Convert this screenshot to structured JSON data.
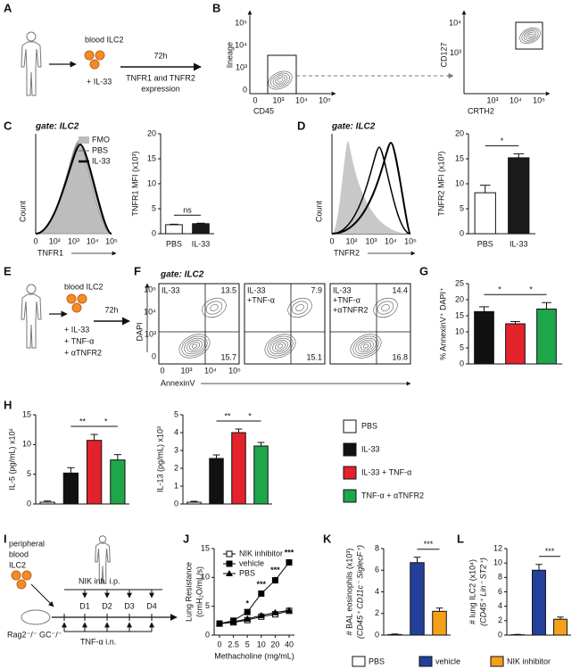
{
  "panel_labels": [
    "A",
    "B",
    "C",
    "D",
    "E",
    "F",
    "G",
    "H",
    "I",
    "J",
    "K",
    "L"
  ],
  "diagram_a": {
    "cells": "blood ILC2",
    "stimulus": "+ IL-33",
    "time": "72h",
    "readout": [
      "TNFR1 and TNFR2",
      "expression"
    ]
  },
  "flow_b": [
    {
      "ylabel": "lineage",
      "xlabel": "CD45",
      "yticks": [
        "10⁵",
        "10⁴",
        "10³",
        "0"
      ],
      "xticks": [
        "0",
        "10³",
        "10⁴",
        "10⁵"
      ]
    },
    {
      "ylabel": "CD127",
      "xlabel": "CRTH2",
      "yticks": [
        "10⁴",
        "10³"
      ],
      "xticks": [
        "10³",
        "10⁴",
        "10⁵"
      ]
    }
  ],
  "histograms": [
    {
      "gate": "gate: ILC2",
      "ylabel": "Count",
      "xlabel": "TNFR1",
      "xticks": [
        "0",
        "10²",
        "10³",
        "10⁴",
        "10⁵"
      ],
      "legend": [
        "FMO",
        "PBS",
        "IL-33"
      ]
    },
    {
      "gate": "gate: ILC2",
      "ylabel": "Count",
      "xlabel": "TNFR2",
      "xticks": [
        "0",
        "10²",
        "10³",
        "10⁴",
        "10⁵"
      ]
    }
  ],
  "diagram_e": {
    "cells": "blood ILC2",
    "stimuli": [
      "+ IL-33",
      "+ TNF-α",
      "+ αTNFR2"
    ],
    "time": "72h"
  },
  "flow_f": {
    "gate": "gate: ILC2",
    "ylabel": "DAPI",
    "xlabel": "AnnexinV",
    "yticks": [
      "10⁵",
      "10⁴",
      "10³",
      "0"
    ],
    "xticks": [
      "0",
      "10³",
      "10⁴",
      "10⁵"
    ],
    "plots": [
      {
        "condition": [
          "IL-33"
        ],
        "upper_right": 13.5,
        "lower_right": 15.7
      },
      {
        "condition": [
          "IL-33",
          "+TNF-α"
        ],
        "upper_right": 7.9,
        "lower_right": 15.1
      },
      {
        "condition": [
          "IL-33",
          "+TNF-α",
          "+αTNFR2"
        ],
        "upper_right": 14.4,
        "lower_right": 16.8
      }
    ]
  },
  "legend_h": [
    "PBS",
    "IL-33",
    "IL-33 + TNF-α",
    "TNF-α + αTNFR2"
  ],
  "diagram_i": {
    "cells": [
      "peripheral",
      "blood",
      "ILC2"
    ],
    "treatment": "NIK inh. i.p.",
    "days": [
      "D1",
      "D2",
      "D3",
      "D4"
    ],
    "mouse": "Rag2⁻/⁻ GC⁻/⁻",
    "challenge": "TNF-α i.n."
  },
  "legend_kl": [
    "PBS",
    "vehicle",
    "NIK inhibitor"
  ],
  "chart_data": [
    {
      "type": "bar",
      "ylabel": [
        "TNFR1 MFI (x10³)"
      ],
      "categories": [
        "PBS",
        "IL-33"
      ],
      "values": [
        1.8,
        2.0
      ],
      "errors": [
        0.1,
        0.1
      ],
      "colors": [
        "#ffffff",
        "#1a1a1a"
      ],
      "ylim": [
        0,
        20
      ],
      "yticks": [
        0,
        5,
        10,
        15,
        20
      ],
      "annotations": [
        "ns"
      ]
    },
    {
      "type": "bar",
      "ylabel": [
        "TNFR2 MFI (x10³)"
      ],
      "categories": [
        "PBS",
        "IL-33"
      ],
      "values": [
        8.2,
        15.2
      ],
      "errors": [
        1.5,
        0.8
      ],
      "colors": [
        "#ffffff",
        "#1a1a1a"
      ],
      "ylim": [
        0,
        20
      ],
      "yticks": [
        0,
        5,
        10,
        15,
        20
      ],
      "annotations": [
        "*"
      ]
    },
    {
      "type": "bar",
      "ylabel": [
        "% AnnexinV⁺ DAPI⁺"
      ],
      "categories": [
        null,
        null,
        null
      ],
      "values": [
        16.3,
        12.5,
        17.1
      ],
      "errors": [
        1.5,
        0.7,
        2.0
      ],
      "colors": [
        "#111111",
        "#e3222b",
        "#1fa54a"
      ],
      "ylim": [
        0,
        25
      ],
      "yticks": [
        0,
        5,
        10,
        15,
        20,
        25
      ],
      "annotations": [
        "*",
        "*"
      ]
    },
    {
      "type": "bar",
      "ylabel": [
        "IL-5 (pg/mL) x10²"
      ],
      "categories": [
        null,
        null,
        null,
        null
      ],
      "values": [
        0.3,
        5.2,
        10.7,
        7.4
      ],
      "errors": [
        0.2,
        0.9,
        1.0,
        0.9
      ],
      "colors": [
        "#ffffff",
        "#111111",
        "#e3222b",
        "#1fa54a"
      ],
      "ylim": [
        0,
        15
      ],
      "yticks": [
        0,
        5,
        10,
        15
      ],
      "annotations": [
        "**",
        "*"
      ]
    },
    {
      "type": "bar",
      "ylabel": [
        "IL-13 (pg/mL) x10³"
      ],
      "categories": [
        null,
        null,
        null,
        null
      ],
      "values": [
        0.1,
        2.55,
        4.0,
        3.25
      ],
      "errors": [
        0.05,
        0.2,
        0.2,
        0.2
      ],
      "colors": [
        "#ffffff",
        "#111111",
        "#e3222b",
        "#1fa54a"
      ],
      "ylim": [
        0,
        5
      ],
      "yticks": [
        0,
        1,
        2,
        3,
        4,
        5
      ],
      "annotations": [
        "**",
        "*"
      ]
    },
    {
      "type": "line",
      "ylabel": [
        "Lung Resistance",
        "(cmH₂O/mL/s)"
      ],
      "xlabel": "Methacholine (mg/mL)",
      "categories": [
        "0",
        "2.5",
        "5",
        "10",
        "20",
        "40"
      ],
      "series": [
        {
          "name": "NIK inhibitor",
          "color": "#000000",
          "marker": "square-open",
          "values": [
            2.0,
            2.2,
            2.6,
            3.2,
            3.6,
            4.2
          ]
        },
        {
          "name": "vehicle",
          "color": "#000000",
          "marker": "square",
          "values": [
            2.0,
            2.5,
            4.0,
            7.2,
            9.5,
            12.6
          ],
          "errors": [
            0.1,
            0.2,
            0.3,
            0.4,
            0.6,
            0.5
          ]
        },
        {
          "name": "PBS",
          "color": "#000000",
          "marker": "triangle",
          "values": [
            2.0,
            2.3,
            2.8,
            3.4,
            3.9,
            4.3
          ]
        }
      ],
      "ylim": [
        0,
        15
      ],
      "yticks": [
        0,
        5,
        10,
        15
      ],
      "annotations": [
        "*",
        "***",
        "***",
        "***"
      ]
    },
    {
      "type": "bar",
      "ylabel": [
        "# BAL eosinophils (x10³)",
        "(CD45⁺ CD11c⁻ SiglecF⁺)"
      ],
      "categories": [
        null,
        null,
        null
      ],
      "values": [
        0.05,
        6.7,
        2.2
      ],
      "errors": [
        0.05,
        0.5,
        0.3
      ],
      "colors": [
        "#ffffff",
        "#24409a",
        "#f5a01a"
      ],
      "ylim": [
        0,
        8
      ],
      "yticks": [
        0,
        2,
        4,
        6,
        8
      ],
      "annotations": [
        "***"
      ]
    },
    {
      "type": "bar",
      "ylabel": [
        "# lung ILC2 (x10⁴)",
        "(CD45⁺ Lin⁻ ST2⁺)"
      ],
      "categories": [
        null,
        null,
        null
      ],
      "values": [
        0.05,
        9.0,
        2.2
      ],
      "errors": [
        0.05,
        0.8,
        0.3
      ],
      "colors": [
        "#ffffff",
        "#24409a",
        "#f5a01a"
      ],
      "ylim": [
        0,
        12
      ],
      "yticks": [
        0,
        2,
        4,
        6,
        8,
        10,
        12
      ],
      "annotations": [
        "***"
      ]
    }
  ]
}
